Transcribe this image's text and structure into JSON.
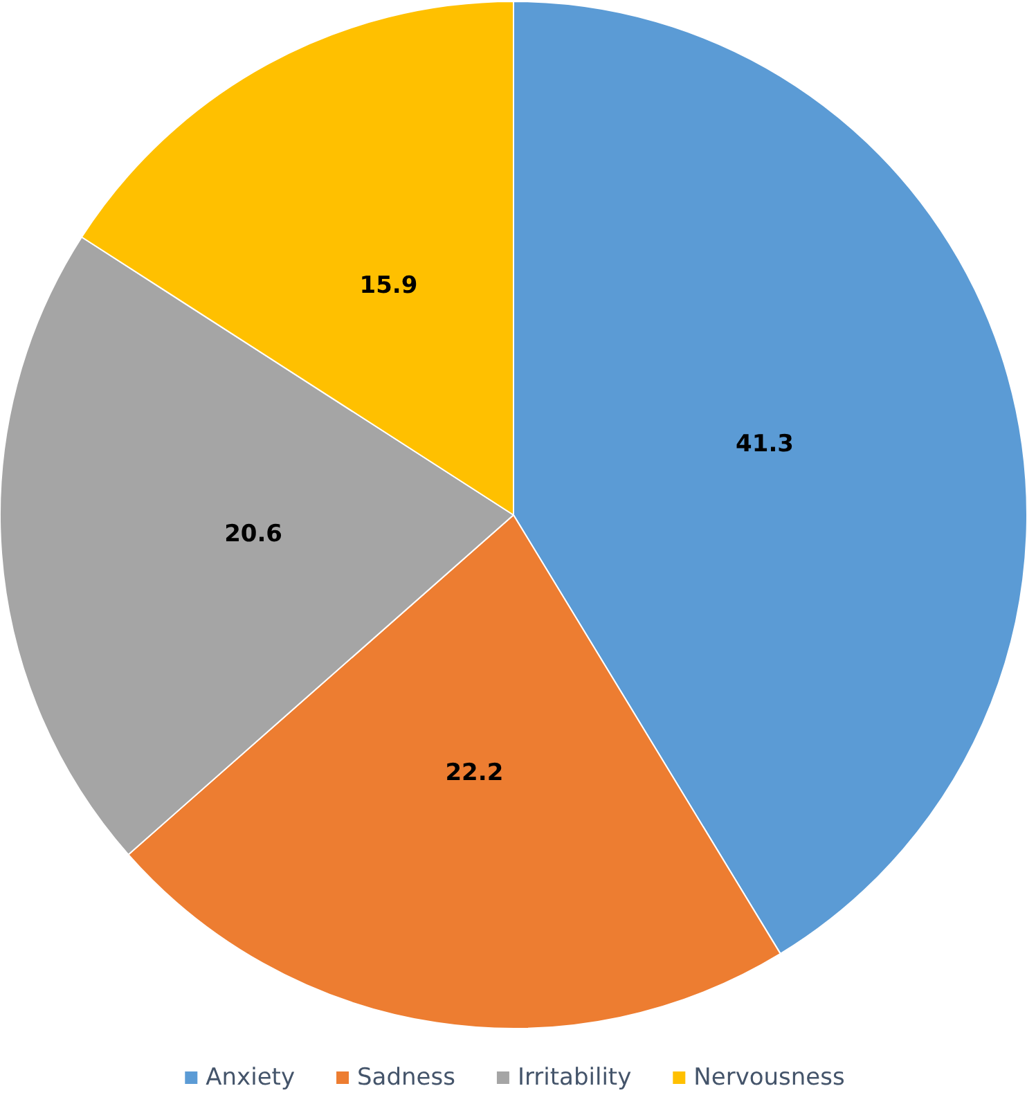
{
  "chart_data": {
    "type": "pie",
    "categories": [
      "Anxiety",
      "Sadness",
      "Irritability",
      "Nervousness"
    ],
    "values": [
      41.3,
      22.2,
      20.6,
      15.9
    ],
    "colors": [
      "#5b9bd5",
      "#ed7d31",
      "#a5a5a5",
      "#ffc000"
    ],
    "data_labels": true,
    "legend": "bottom"
  }
}
